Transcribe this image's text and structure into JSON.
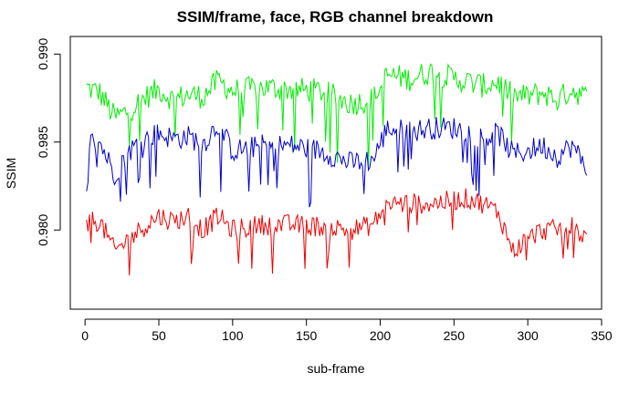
{
  "chart_data": {
    "type": "line",
    "title": "SSIM/frame, face, RGB channel breakdown",
    "xlabel": "sub-frame",
    "ylabel": "SSIM",
    "xlim": [
      -10,
      350
    ],
    "ylim": [
      0.9755,
      0.991
    ],
    "x_ticks": [
      0,
      50,
      100,
      150,
      200,
      250,
      300,
      350
    ],
    "y_ticks": [
      0.98,
      0.985,
      0.99
    ],
    "x_tick_labels": [
      "0",
      "50",
      "100",
      "150",
      "200",
      "250",
      "300",
      "350"
    ],
    "y_tick_labels": [
      "0.980",
      "0.985",
      "0.990"
    ],
    "grid": false,
    "legend": "none",
    "n_points": 340,
    "series": [
      {
        "color": "#00ee00",
        "profile": [
          [
            1,
            0.9881
          ],
          [
            10,
            0.9878
          ],
          [
            20,
            0.9864
          ],
          [
            30,
            0.9868
          ],
          [
            40,
            0.9875
          ],
          [
            50,
            0.988
          ],
          [
            60,
            0.9874
          ],
          [
            70,
            0.9877
          ],
          [
            80,
            0.9876
          ],
          [
            90,
            0.9885
          ],
          [
            100,
            0.9879
          ],
          [
            120,
            0.9881
          ],
          [
            140,
            0.988
          ],
          [
            160,
            0.9879
          ],
          [
            180,
            0.9872
          ],
          [
            195,
            0.9874
          ],
          [
            205,
            0.9888
          ],
          [
            220,
            0.9886
          ],
          [
            235,
            0.989
          ],
          [
            250,
            0.9886
          ],
          [
            260,
            0.9884
          ],
          [
            270,
            0.9882
          ],
          [
            280,
            0.9884
          ],
          [
            290,
            0.9876
          ],
          [
            300,
            0.9876
          ],
          [
            310,
            0.9878
          ],
          [
            320,
            0.9874
          ],
          [
            330,
            0.988
          ],
          [
            340,
            0.9875
          ]
        ],
        "noise": 0.0012
      },
      {
        "color": "#0000cc",
        "profile": [
          [
            1,
            0.985
          ],
          [
            10,
            0.985
          ],
          [
            20,
            0.9832
          ],
          [
            30,
            0.9845
          ],
          [
            40,
            0.9852
          ],
          [
            50,
            0.9855
          ],
          [
            60,
            0.9852
          ],
          [
            70,
            0.9853
          ],
          [
            80,
            0.9849
          ],
          [
            90,
            0.986
          ],
          [
            100,
            0.9845
          ],
          [
            120,
            0.9848
          ],
          [
            140,
            0.9848
          ],
          [
            160,
            0.9845
          ],
          [
            180,
            0.9838
          ],
          [
            195,
            0.984
          ],
          [
            205,
            0.9858
          ],
          [
            220,
            0.9856
          ],
          [
            235,
            0.9858
          ],
          [
            250,
            0.9858
          ],
          [
            260,
            0.9856
          ],
          [
            270,
            0.9852
          ],
          [
            280,
            0.9855
          ],
          [
            290,
            0.9843
          ],
          [
            300,
            0.9845
          ],
          [
            310,
            0.9848
          ],
          [
            320,
            0.9842
          ],
          [
            330,
            0.9848
          ],
          [
            340,
            0.9835
          ]
        ],
        "noise": 0.0011
      },
      {
        "color": "#ee0000",
        "profile": [
          [
            1,
            0.9805
          ],
          [
            10,
            0.9805
          ],
          [
            20,
            0.9788
          ],
          [
            30,
            0.9795
          ],
          [
            40,
            0.9802
          ],
          [
            50,
            0.9808
          ],
          [
            60,
            0.9805
          ],
          [
            70,
            0.9808
          ],
          [
            80,
            0.98
          ],
          [
            90,
            0.9808
          ],
          [
            100,
            0.98
          ],
          [
            120,
            0.9803
          ],
          [
            140,
            0.9803
          ],
          [
            160,
            0.9802
          ],
          [
            180,
            0.98
          ],
          [
            195,
            0.9803
          ],
          [
            205,
            0.9815
          ],
          [
            220,
            0.9815
          ],
          [
            235,
            0.9815
          ],
          [
            250,
            0.9817
          ],
          [
            260,
            0.9818
          ],
          [
            270,
            0.9815
          ],
          [
            280,
            0.981
          ],
          [
            290,
            0.9788
          ],
          [
            300,
            0.9795
          ],
          [
            310,
            0.98
          ],
          [
            320,
            0.98
          ],
          [
            330,
            0.9802
          ],
          [
            340,
            0.9795
          ]
        ],
        "noise": 0.001
      }
    ]
  }
}
